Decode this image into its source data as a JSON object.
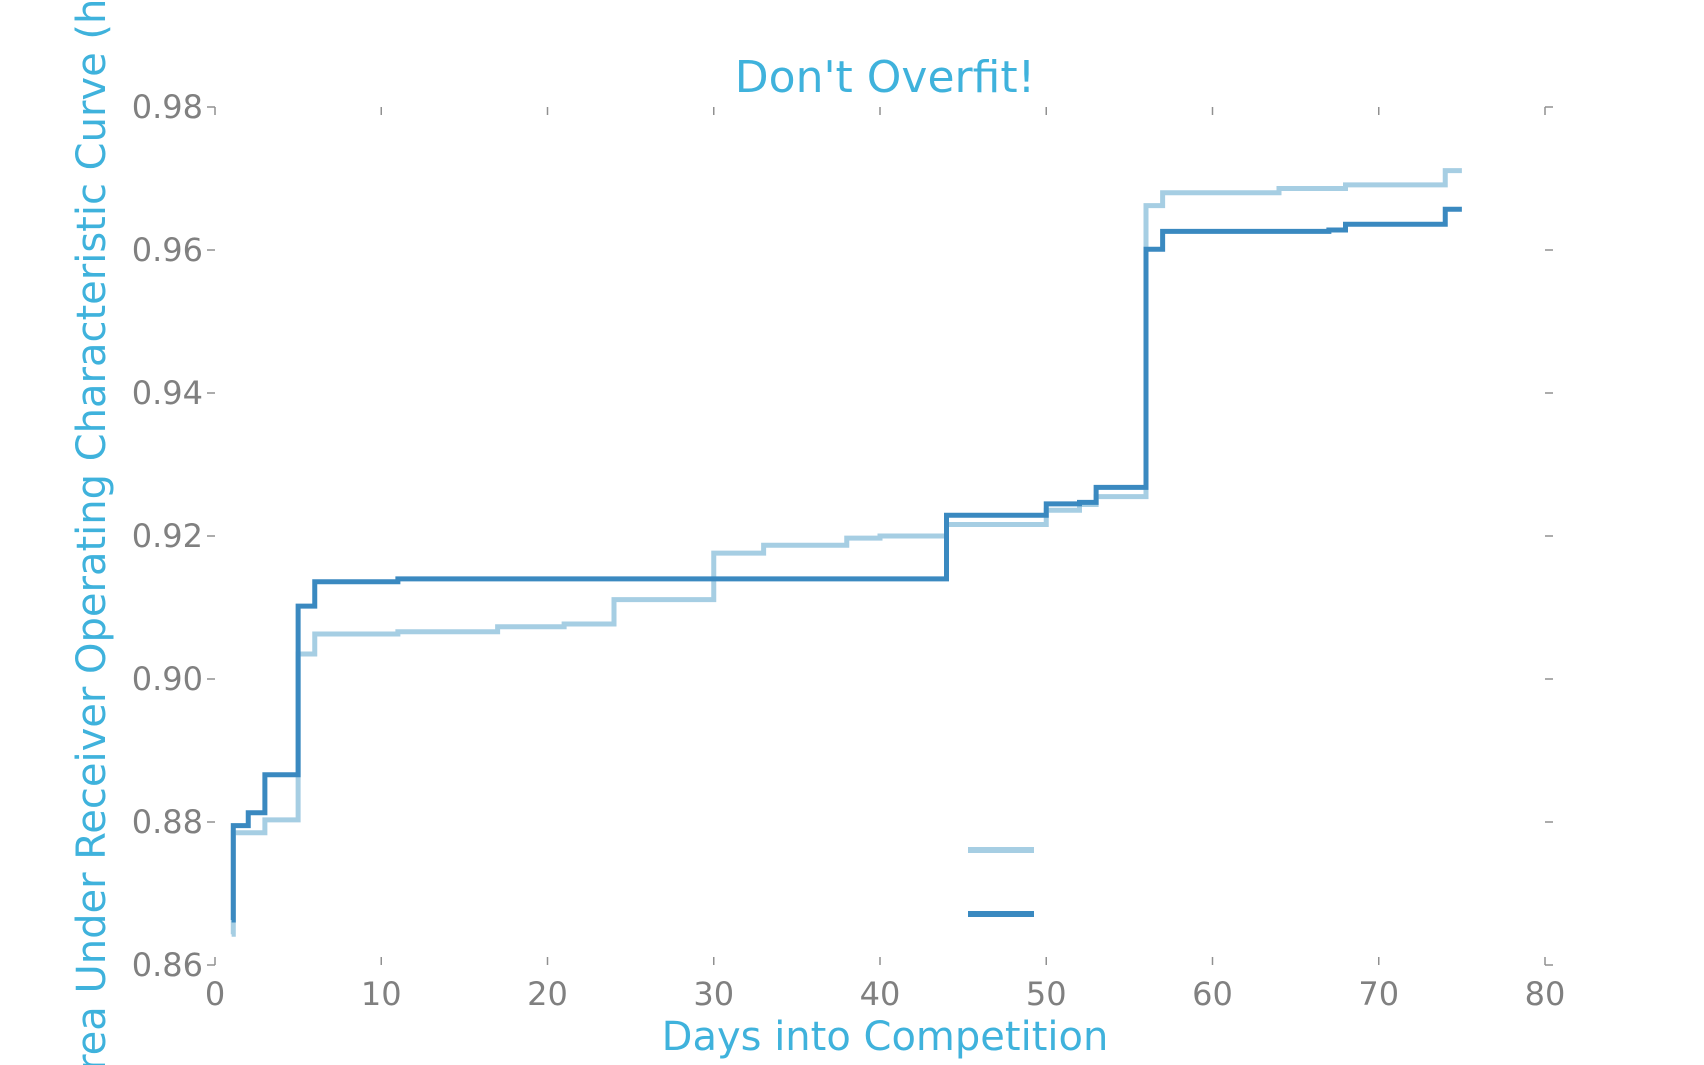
{
  "chart_data": {
    "type": "line",
    "step": "post",
    "title": "Don't Overfit!",
    "xlabel": "Days into Competition",
    "ylabel": "Area Under Receiver Operating Characteristic Curve (higher",
    "xlim": [
      0,
      80
    ],
    "ylim": [
      0.86,
      0.98
    ],
    "x_ticks": [
      "0",
      "10",
      "20",
      "30",
      "40",
      "50",
      "60",
      "70",
      "80"
    ],
    "y_ticks": [
      "0.86",
      "0.88",
      "0.90",
      "0.92",
      "0.94",
      "0.96",
      "0.98"
    ],
    "grid": false,
    "legend_position": "lower-right",
    "series": [
      {
        "color": "#a6cee3",
        "x": [
          1,
          1.1,
          3,
          5,
          6,
          11,
          17,
          21,
          24,
          30,
          33,
          38,
          40,
          44,
          50,
          52,
          53,
          56,
          57,
          64,
          68,
          74,
          75
        ],
        "y": [
          0.8643,
          0.8785,
          0.8803,
          0.9035,
          0.9063,
          0.9066,
          0.9073,
          0.9077,
          0.9111,
          0.9176,
          0.9187,
          0.9197,
          0.92,
          0.9216,
          0.9236,
          0.9244,
          0.9255,
          0.9662,
          0.968,
          0.9686,
          0.9691,
          0.9711,
          0.9711
        ]
      },
      {
        "color": "#3a89c0",
        "x": [
          1,
          1.1,
          2,
          3,
          5,
          6,
          11,
          44,
          50,
          52,
          53,
          56,
          57,
          67,
          68,
          74,
          75
        ],
        "y": [
          0.8663,
          0.8795,
          0.8813,
          0.8866,
          0.9102,
          0.9136,
          0.914,
          0.9229,
          0.9245,
          0.9247,
          0.9268,
          0.9601,
          0.9626,
          0.9628,
          0.9636,
          0.9657,
          0.9657
        ]
      }
    ]
  }
}
